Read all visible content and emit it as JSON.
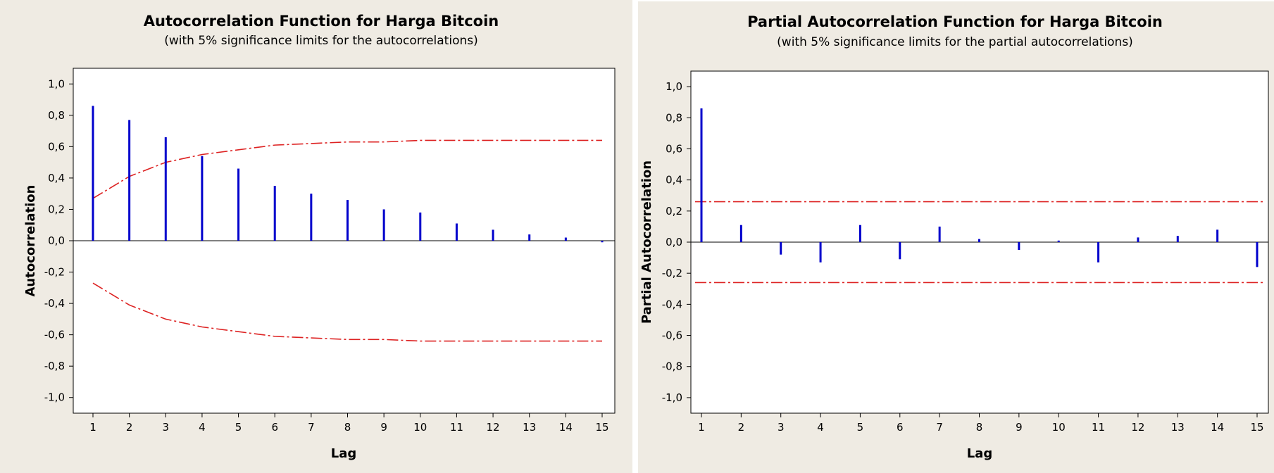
{
  "chart_data": [
    {
      "type": "bar",
      "title": "Autocorrelation Function for Harga Bitcoin",
      "subtitle": "(with 5% significance limits for the autocorrelations)",
      "xlabel": "Lag",
      "ylabel": "Autocorrelation",
      "ylim": [
        -1.1,
        1.1
      ],
      "yticks": [
        "1,0",
        "0,8",
        "0,6",
        "0,4",
        "0,2",
        "0,0",
        "-0,2",
        "-0,4",
        "-0,6",
        "-0,8",
        "-1,0"
      ],
      "ytick_values": [
        1.0,
        0.8,
        0.6,
        0.4,
        0.2,
        0.0,
        -0.2,
        -0.4,
        -0.6,
        -0.8,
        -1.0
      ],
      "categories": [
        "1",
        "2",
        "3",
        "4",
        "5",
        "6",
        "7",
        "8",
        "9",
        "10",
        "11",
        "12",
        "13",
        "14",
        "15"
      ],
      "values": [
        0.86,
        0.77,
        0.66,
        0.54,
        0.46,
        0.35,
        0.3,
        0.26,
        0.2,
        0.18,
        0.11,
        0.07,
        0.04,
        0.02,
        -0.01
      ],
      "significance_limit": [
        0.27,
        0.41,
        0.5,
        0.55,
        0.58,
        0.61,
        0.62,
        0.63,
        0.63,
        0.64,
        0.64,
        0.64,
        0.64,
        0.64,
        0.64
      ],
      "limit_style": "curve",
      "colors": {
        "bars": "#0000cc",
        "limits": "#dd2222",
        "background": "#efebe3",
        "plot": "#ffffff"
      }
    },
    {
      "type": "bar",
      "title": "Partial Autocorrelation Function for Harga Bitcoin",
      "subtitle": "(with 5% significance limits for the partial autocorrelations)",
      "xlabel": "Lag",
      "ylabel": "Partial Autocorrelation",
      "ylim": [
        -1.1,
        1.1
      ],
      "yticks": [
        "1,0",
        "0,8",
        "0,6",
        "0,4",
        "0,2",
        "0,0",
        "-0,2",
        "-0,4",
        "-0,6",
        "-0,8",
        "-1,0"
      ],
      "ytick_values": [
        1.0,
        0.8,
        0.6,
        0.4,
        0.2,
        0.0,
        -0.2,
        -0.4,
        -0.6,
        -0.8,
        -1.0
      ],
      "categories": [
        "1",
        "2",
        "3",
        "4",
        "5",
        "6",
        "7",
        "8",
        "9",
        "10",
        "11",
        "12",
        "13",
        "14",
        "15"
      ],
      "values": [
        0.86,
        0.11,
        -0.08,
        -0.13,
        0.11,
        -0.11,
        0.1,
        0.02,
        -0.05,
        0.01,
        -0.13,
        0.03,
        0.04,
        0.08,
        -0.16
      ],
      "significance_limit": [
        0.26,
        0.26,
        0.26,
        0.26,
        0.26,
        0.26,
        0.26,
        0.26,
        0.26,
        0.26,
        0.26,
        0.26,
        0.26,
        0.26,
        0.26
      ],
      "limit_style": "flat",
      "colors": {
        "bars": "#0000cc",
        "limits": "#dd2222",
        "background": "#efebe3",
        "plot": "#ffffff"
      }
    }
  ]
}
